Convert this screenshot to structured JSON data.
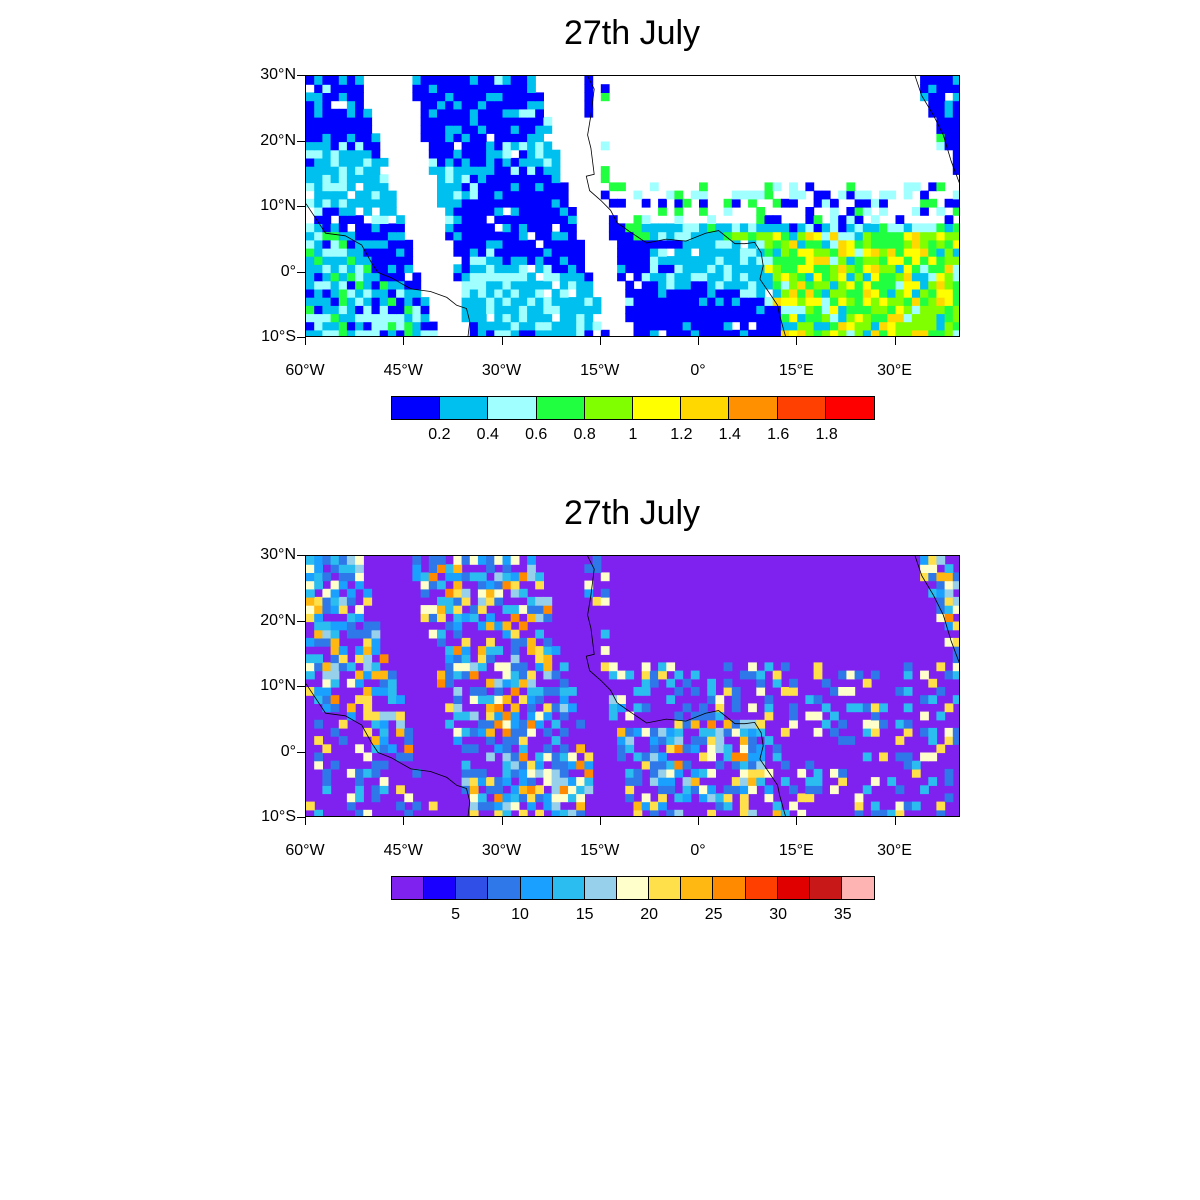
{
  "maps": [
    {
      "title": "27th July",
      "lat_labels": [
        "30°N",
        "20°N",
        "10°N",
        "0°",
        "10°S"
      ],
      "lon_labels": [
        "60°W",
        "45°W",
        "30°W",
        "15°W",
        "0°",
        "15°E",
        "30°E"
      ],
      "colorbar": {
        "colors": [
          "#0000ff",
          "#00c0ef",
          "#a0ffff",
          "#20ff40",
          "#80ff00",
          "#ffff00",
          "#ffd800",
          "#ff9000",
          "#ff4000",
          "#ff0000"
        ],
        "labels": [
          "0.2",
          "0.4",
          "0.6",
          "0.8",
          "1",
          "1.2",
          "1.4",
          "1.6",
          "1.8"
        ]
      },
      "missing_color": "#ffffff"
    },
    {
      "title": "27th July",
      "lat_labels": [
        "30°N",
        "20°N",
        "10°N",
        "0°",
        "10°S"
      ],
      "lon_labels": [
        "60°W",
        "45°W",
        "30°W",
        "15°W",
        "0°",
        "15°E",
        "30°E"
      ],
      "colorbar": {
        "colors": [
          "#7f22f0",
          "#1a00ff",
          "#2f4fe6",
          "#2f78ea",
          "#1aa0ff",
          "#2bbdf0",
          "#96d0ea",
          "#ffffcc",
          "#ffe04a",
          "#ffb812",
          "#ff8a00",
          "#ff3f00",
          "#e00000",
          "#c81818",
          "#ffb4b4"
        ],
        "labels": [
          "5",
          "10",
          "15",
          "20",
          "25",
          "30",
          "35"
        ]
      },
      "missing_color": "#7f22f0"
    }
  ]
}
